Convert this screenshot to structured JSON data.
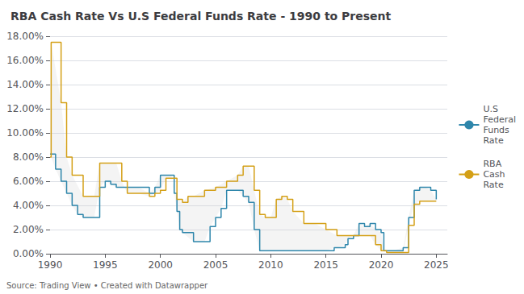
{
  "chart_data": {
    "type": "line",
    "title": "RBA Cash Rate Vs U.S Federal Funds Rate - 1990 to Present",
    "annotations": [
      "Source: Trading View • Created with Datawrapper"
    ],
    "xlim": [
      1990,
      2026
    ],
    "xticks": [
      1990,
      1995,
      2000,
      2005,
      2010,
      2015,
      2020,
      2025
    ],
    "ylim": [
      0,
      18
    ],
    "yticks": [
      {
        "value": 0,
        "label": "0.00%"
      },
      {
        "value": 2,
        "label": "2.00%"
      },
      {
        "value": 4,
        "label": "4.00%"
      },
      {
        "value": 6,
        "label": "6.00%"
      },
      {
        "value": 8,
        "label": "8.00%"
      },
      {
        "value": 10,
        "label": "10.00%"
      },
      {
        "value": 12,
        "label": "12.00%"
      },
      {
        "value": 14,
        "label": "14.00%"
      },
      {
        "value": 16,
        "label": "16.00%"
      },
      {
        "value": 18,
        "label": "18.00%"
      }
    ],
    "grid": true,
    "legend": "right",
    "line_style": "step",
    "series": [
      {
        "name": "U.S Federal Funds Rate",
        "color": "#2E86AB",
        "x": [
          1990,
          1990.5,
          1991,
          1991.5,
          1992,
          1992.5,
          1993,
          1994,
          1994.5,
          1995,
          1995.5,
          1996,
          1997,
          1998,
          1999,
          1999.5,
          2000,
          2000.5,
          2001,
          2001.25,
          2001.5,
          2001.75,
          2002,
          2003,
          2004,
          2004.5,
          2005,
          2005.5,
          2006,
          2006.5,
          2007,
          2007.5,
          2008,
          2008.5,
          2009,
          2010,
          2011,
          2012,
          2013,
          2014,
          2015,
          2015.75,
          2016,
          2016.75,
          2017,
          2017.5,
          2018,
          2018.5,
          2019,
          2019.5,
          2020,
          2020.25,
          2021,
          2022,
          2022.5,
          2023,
          2023.5,
          2024,
          2024.5,
          2025
        ],
        "values": [
          8.25,
          7.0,
          6.0,
          5.0,
          4.0,
          3.25,
          3.0,
          3.0,
          5.5,
          6.0,
          5.75,
          5.5,
          5.5,
          5.5,
          5.0,
          5.5,
          6.5,
          6.5,
          6.5,
          5.0,
          3.5,
          2.0,
          1.75,
          1.0,
          1.0,
          2.25,
          3.0,
          3.75,
          5.25,
          5.25,
          5.25,
          4.75,
          4.25,
          2.0,
          0.25,
          0.25,
          0.25,
          0.25,
          0.25,
          0.25,
          0.25,
          0.5,
          0.5,
          0.75,
          1.25,
          1.5,
          2.5,
          2.25,
          2.5,
          2.0,
          1.75,
          0.25,
          0.25,
          0.5,
          3.0,
          5.25,
          5.5,
          5.5,
          5.25,
          4.5
        ]
      },
      {
        "name": "RBA Cash Rate",
        "color": "#D4A017",
        "x": [
          1990,
          1990.1,
          1991,
          1991.5,
          1992,
          1993,
          1994,
          1994.5,
          1995,
          1995.5,
          1996,
          1996.5,
          1997,
          1998,
          1999,
          1999.5,
          2000,
          2000.5,
          2001,
          2001.5,
          2002,
          2002.5,
          2003,
          2004,
          2005,
          2006,
          2007,
          2007.5,
          2008,
          2008.5,
          2009,
          2009.5,
          2010,
          2010.5,
          2011,
          2011.5,
          2012,
          2013,
          2014,
          2015,
          2016,
          2017,
          2018,
          2019,
          2019.5,
          2020,
          2020.5,
          2021,
          2022,
          2022.5,
          2023,
          2023.5,
          2024,
          2024.5,
          2025
        ],
        "values": [
          8.0,
          17.5,
          12.5,
          8.0,
          6.5,
          4.75,
          4.75,
          7.5,
          7.5,
          7.5,
          7.5,
          6.0,
          5.0,
          5.0,
          4.75,
          5.0,
          5.25,
          6.25,
          6.25,
          4.5,
          4.25,
          4.75,
          4.75,
          5.25,
          5.5,
          6.0,
          6.5,
          7.25,
          7.25,
          5.25,
          3.25,
          3.0,
          3.0,
          4.5,
          4.75,
          4.5,
          3.5,
          2.5,
          2.5,
          2.0,
          1.5,
          1.5,
          1.5,
          1.5,
          0.75,
          0.25,
          0.1,
          0.1,
          0.1,
          2.35,
          4.1,
          4.35,
          4.35,
          4.35,
          4.35
        ]
      }
    ]
  }
}
